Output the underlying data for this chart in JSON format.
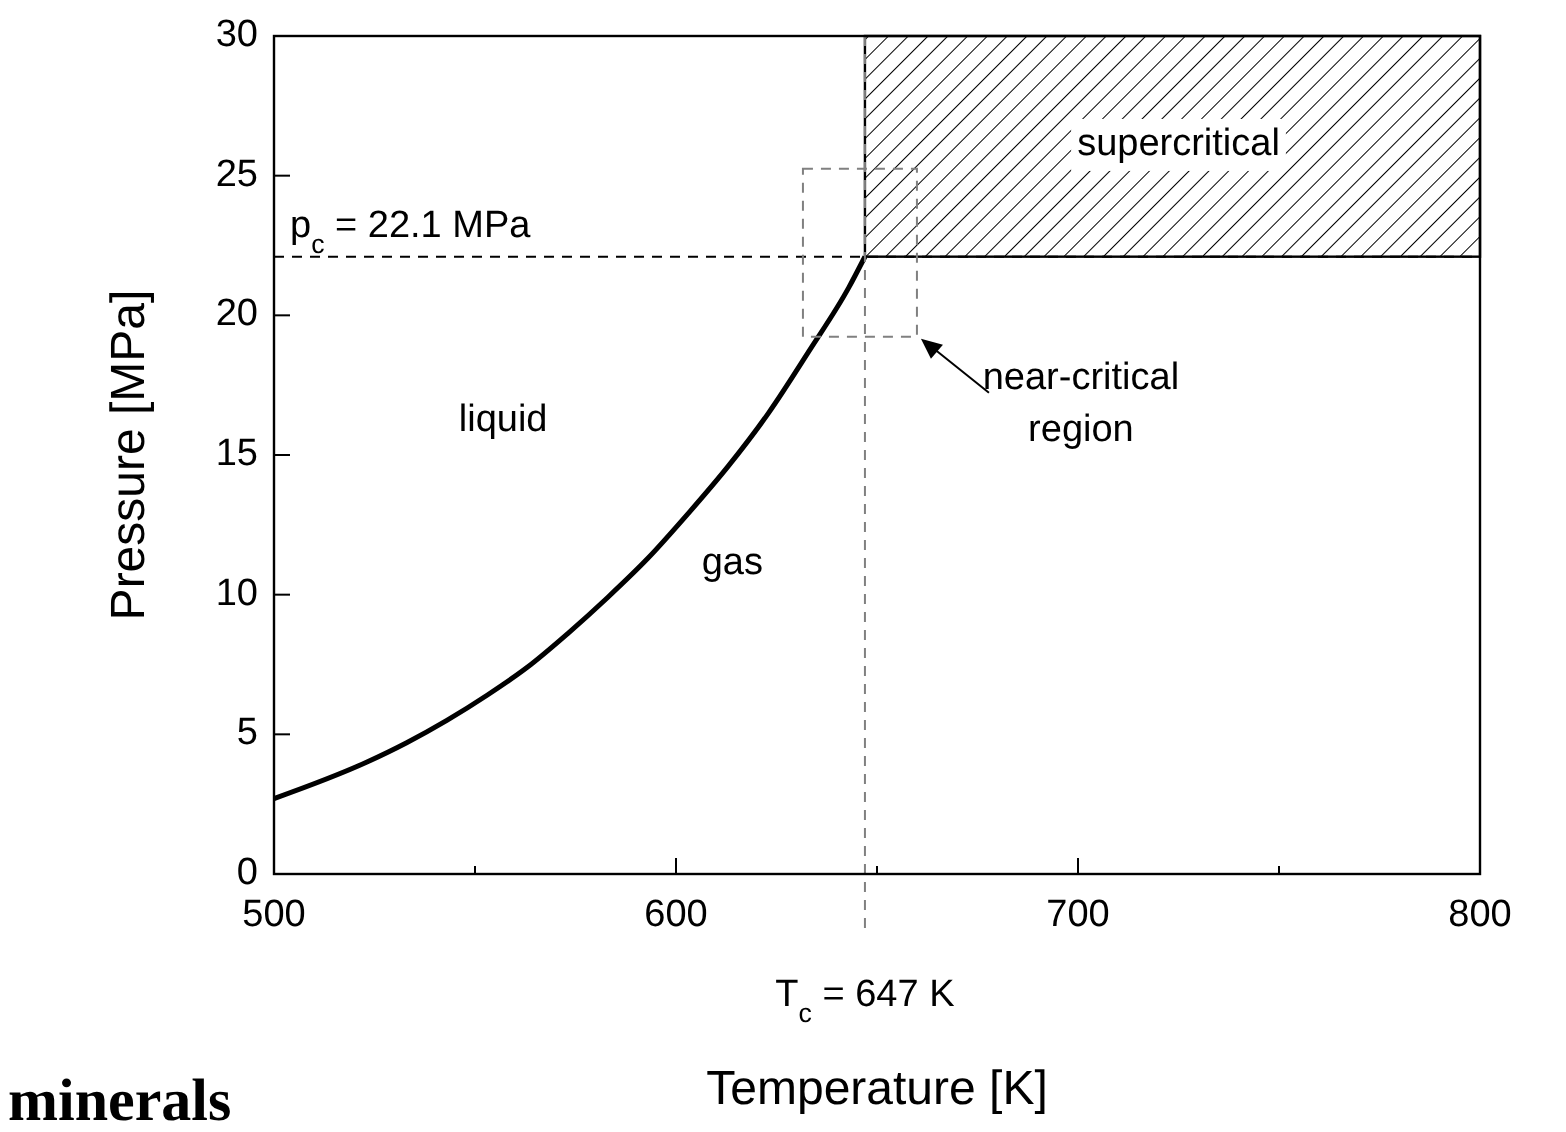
{
  "chart_data": {
    "type": "line",
    "xlabel": "Temperature [K]",
    "ylabel": "Pressure [MPa]",
    "xlim": [
      500,
      800
    ],
    "ylim": [
      0,
      30
    ],
    "xticks": [
      500,
      {
        "value": 550,
        "label": null
      },
      600,
      {
        "value": 650,
        "label": null
      },
      700,
      {
        "value": 750,
        "label": null
      },
      800
    ],
    "yticks": [
      0,
      5,
      10,
      15,
      20,
      25,
      30
    ],
    "grid": false,
    "series": [
      {
        "color": "#000000",
        "x": [
          500,
          523,
          533,
          543,
          553,
          563,
          573,
          583,
          593,
          603,
          613,
          623,
          633,
          643,
          647
        ],
        "values": [
          2.7,
          4.0,
          4.7,
          5.5,
          6.4,
          7.4,
          8.6,
          9.9,
          11.3,
          12.9,
          14.6,
          16.5,
          18.7,
          21.0,
          22.1
        ]
      }
    ],
    "bands": [
      {
        "axis": "x",
        "from": 647,
        "to": 800,
        "color": "#000000"
      }
    ],
    "ref_lines": [
      {
        "axis": "y",
        "value": 22.1,
        "label": "p$_{c}$ = 22.1 MPa",
        "line_style": "dashed",
        "color": "#000000"
      },
      {
        "axis": "x",
        "value": 647,
        "label": "T$_{c}$ = 647 K",
        "line_style": "dashed",
        "color": "#808080"
      }
    ],
    "annotations": [
      "supercritical",
      "liquid",
      "gas",
      "near-critical region",
      "minerals"
    ]
  }
}
